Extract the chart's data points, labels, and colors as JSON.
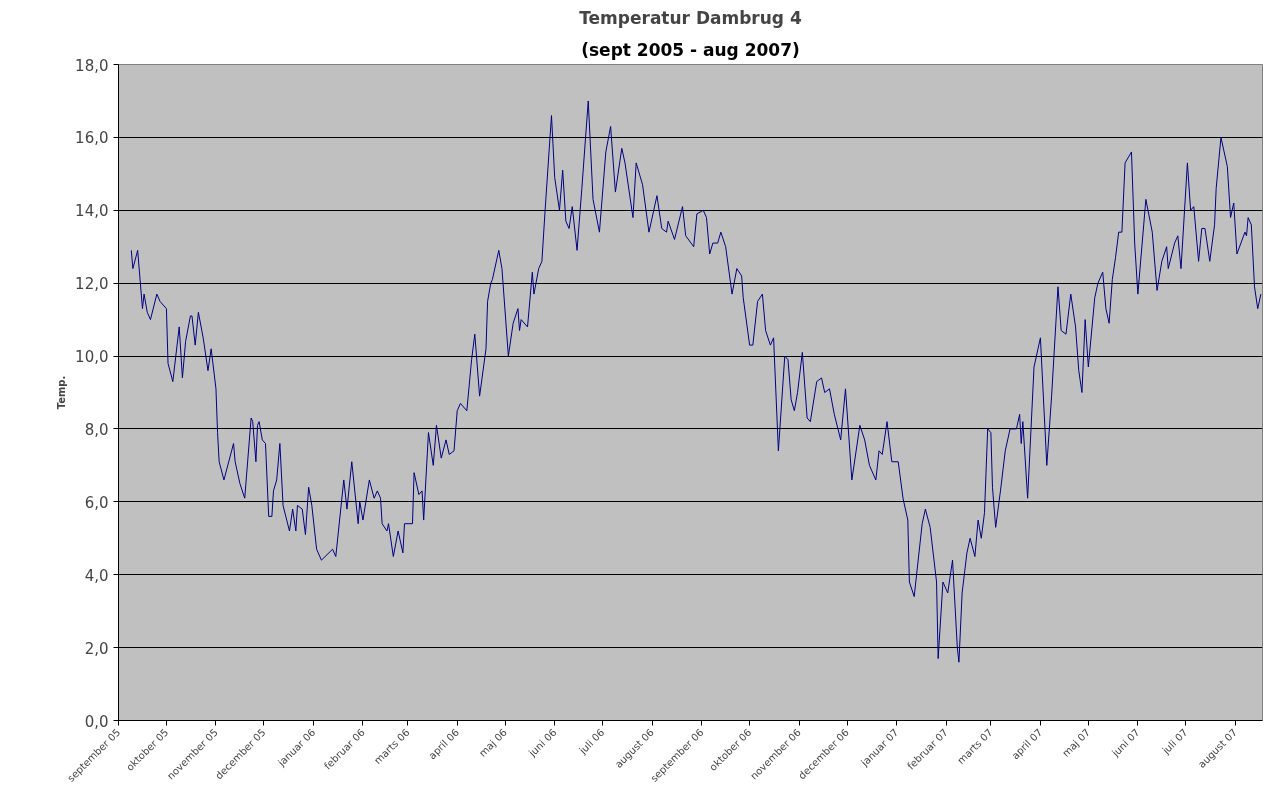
{
  "chart_data": {
    "type": "line",
    "title": "Temperatur Dambrug 4",
    "subtitle": "(sept 2005 - aug 2007)",
    "ylabel": "Temp.",
    "xlim": [
      "2005-09-01",
      "2007-08-18"
    ],
    "xticks": [
      {
        "value": "2005-09-01",
        "label": "september 05"
      },
      {
        "value": "2005-10-01",
        "label": "oktober 05"
      },
      {
        "value": "2005-11-01",
        "label": "november 05"
      },
      {
        "value": "2005-12-01",
        "label": "december 05"
      },
      {
        "value": "2006-01-01",
        "label": "januar 06"
      },
      {
        "value": "2006-02-01",
        "label": "februar 06"
      },
      {
        "value": "2006-03-01",
        "label": "marts 06"
      },
      {
        "value": "2006-04-01",
        "label": "april 06"
      },
      {
        "value": "2006-05-01",
        "label": "maj 06"
      },
      {
        "value": "2006-06-01",
        "label": "juni 06"
      },
      {
        "value": "2006-07-01",
        "label": "juli 06"
      },
      {
        "value": "2006-08-01",
        "label": "august 06"
      },
      {
        "value": "2006-09-01",
        "label": "september 06"
      },
      {
        "value": "2006-10-01",
        "label": "oktober 06"
      },
      {
        "value": "2006-11-01",
        "label": "november 06"
      },
      {
        "value": "2006-12-01",
        "label": "december 06"
      },
      {
        "value": "2007-01-01",
        "label": "januar 07"
      },
      {
        "value": "2007-02-01",
        "label": "februar 07"
      },
      {
        "value": "2007-03-01",
        "label": "marts 07"
      },
      {
        "value": "2007-04-01",
        "label": "april 07"
      },
      {
        "value": "2007-05-01",
        "label": "maj 07"
      },
      {
        "value": "2007-06-01",
        "label": "juni 07"
      },
      {
        "value": "2007-07-01",
        "label": "juli 07"
      },
      {
        "value": "2007-08-01",
        "label": "august 07"
      }
    ],
    "ylim": [
      0,
      18
    ],
    "yticks": [
      {
        "value": 0,
        "label": "0,0"
      },
      {
        "value": 2,
        "label": "2,0"
      },
      {
        "value": 4,
        "label": "4,0"
      },
      {
        "value": 6,
        "label": "6,0"
      },
      {
        "value": 8,
        "label": "8,0"
      },
      {
        "value": 10,
        "label": "10,0"
      },
      {
        "value": 12,
        "label": "12,0"
      },
      {
        "value": 14,
        "label": "14,0"
      },
      {
        "value": 16,
        "label": "16,0"
      },
      {
        "value": 18,
        "label": "18,0"
      }
    ],
    "grid": "y",
    "marker": "none",
    "line_style": "solid",
    "x": [
      "2005-09-09",
      "2005-09-10",
      "2005-09-13",
      "2005-09-16",
      "2005-09-17",
      "2005-09-19",
      "2005-09-21",
      "2005-09-25",
      "2005-09-27",
      "2005-10-01",
      "2005-10-02",
      "2005-10-05",
      "2005-10-09",
      "2005-10-11",
      "2005-10-13",
      "2005-10-16",
      "2005-10-17",
      "2005-10-19",
      "2005-10-21",
      "2005-10-24",
      "2005-10-27",
      "2005-10-29",
      "2005-11-01",
      "2005-11-02",
      "2005-11-03",
      "2005-11-06",
      "2005-11-12",
      "2005-11-13",
      "2005-11-16",
      "2005-11-19",
      "2005-11-23",
      "2005-11-24",
      "2005-11-26",
      "2005-11-27",
      "2005-11-28",
      "2005-11-30",
      "2005-12-02",
      "2005-12-04",
      "2005-12-06",
      "2005-12-07",
      "2005-12-09",
      "2005-12-11",
      "2005-12-13",
      "2005-12-17",
      "2005-12-19",
      "2005-12-21",
      "2005-12-22",
      "2005-12-25",
      "2005-12-27",
      "2005-12-29",
      "2005-12-31",
      "2006-01-03",
      "2006-01-06",
      "2006-01-13",
      "2006-01-15",
      "2006-01-20",
      "2006-01-22",
      "2006-01-25",
      "2006-01-29",
      "2006-01-30",
      "2006-02-01",
      "2006-02-05",
      "2006-02-08",
      "2006-02-10",
      "2006-02-12",
      "2006-02-13",
      "2006-02-16",
      "2006-02-17",
      "2006-02-20",
      "2006-02-23",
      "2006-02-26",
      "2006-02-27",
      "2006-03-04",
      "2006-03-05",
      "2006-03-08",
      "2006-03-10",
      "2006-03-11",
      "2006-03-14",
      "2006-03-17",
      "2006-03-19",
      "2006-03-22",
      "2006-03-25",
      "2006-03-27",
      "2006-03-30",
      "2006-04-01",
      "2006-04-03",
      "2006-04-07",
      "2006-04-10",
      "2006-04-12",
      "2006-04-15",
      "2006-04-19",
      "2006-04-20",
      "2006-04-22",
      "2006-04-23",
      "2006-04-27",
      "2006-04-29",
      "2006-05-03",
      "2006-05-06",
      "2006-05-09",
      "2006-05-10",
      "2006-05-11",
      "2006-05-15",
      "2006-05-18",
      "2006-05-19",
      "2006-05-22",
      "2006-05-24",
      "2006-05-26",
      "2006-05-30",
      "2006-06-01",
      "2006-06-04",
      "2006-06-06",
      "2006-06-08",
      "2006-06-10",
      "2006-06-12",
      "2006-06-15",
      "2006-06-18",
      "2006-06-22",
      "2006-06-25",
      "2006-06-29",
      "2006-07-03",
      "2006-07-06",
      "2006-07-09",
      "2006-07-13",
      "2006-07-15",
      "2006-07-20",
      "2006-07-22",
      "2006-07-26",
      "2006-07-30",
      "2006-08-04",
      "2006-08-07",
      "2006-08-10",
      "2006-08-11",
      "2006-08-15",
      "2006-08-20",
      "2006-08-22",
      "2006-08-27",
      "2006-08-29",
      "2006-09-02",
      "2006-09-04",
      "2006-09-06",
      "2006-09-08",
      "2006-09-11",
      "2006-09-13",
      "2006-09-16",
      "2006-09-20",
      "2006-09-23",
      "2006-09-26",
      "2006-09-27",
      "2006-10-01",
      "2006-10-03",
      "2006-10-06",
      "2006-10-09",
      "2006-10-11",
      "2006-10-14",
      "2006-10-16",
      "2006-10-19",
      "2006-10-23",
      "2006-10-25",
      "2006-10-27",
      "2006-10-29",
      "2006-10-31",
      "2006-11-03",
      "2006-11-06",
      "2006-11-08",
      "2006-11-12",
      "2006-11-15",
      "2006-11-17",
      "2006-11-20",
      "2006-11-23",
      "2006-11-27",
      "2006-11-30",
      "2006-12-04",
      "2006-12-09",
      "2006-12-12",
      "2006-12-15",
      "2006-12-19",
      "2006-12-21",
      "2006-12-23",
      "2006-12-26",
      "2006-12-29",
      "2007-01-02",
      "2007-01-05",
      "2007-01-08",
      "2007-01-09",
      "2007-01-12",
      "2007-01-17",
      "2007-01-19",
      "2007-01-22",
      "2007-01-26",
      "2007-01-27",
      "2007-01-30",
      "2007-02-02",
      "2007-02-05",
      "2007-02-08",
      "2007-02-09",
      "2007-02-11",
      "2007-02-14",
      "2007-02-16",
      "2007-02-19",
      "2007-02-21",
      "2007-02-23",
      "2007-02-25",
      "2007-02-27",
      "2007-03-01",
      "2007-03-02",
      "2007-03-04",
      "2007-03-07",
      "2007-03-10",
      "2007-03-13",
      "2007-03-17",
      "2007-03-19",
      "2007-03-20",
      "2007-03-21",
      "2007-03-24",
      "2007-03-28",
      "2007-04-01",
      "2007-04-05",
      "2007-04-08",
      "2007-04-12",
      "2007-04-14",
      "2007-04-17",
      "2007-04-20",
      "2007-04-23",
      "2007-04-25",
      "2007-04-27",
      "2007-04-29",
      "2007-05-01",
      "2007-05-05",
      "2007-05-07",
      "2007-05-10",
      "2007-05-12",
      "2007-05-14",
      "2007-05-16",
      "2007-05-18",
      "2007-05-20",
      "2007-05-22",
      "2007-05-24",
      "2007-05-28",
      "2007-05-30",
      "2007-06-01",
      "2007-06-06",
      "2007-06-10",
      "2007-06-13",
      "2007-06-16",
      "2007-06-19",
      "2007-06-20",
      "2007-06-24",
      "2007-06-26",
      "2007-06-28",
      "2007-07-02",
      "2007-07-04",
      "2007-07-06",
      "2007-07-09",
      "2007-07-11",
      "2007-07-13",
      "2007-07-16",
      "2007-07-19",
      "2007-07-20",
      "2007-07-23",
      "2007-07-25",
      "2007-07-27",
      "2007-07-29",
      "2007-07-31",
      "2007-08-02",
      "2007-08-07",
      "2007-08-08",
      "2007-08-09",
      "2007-08-11",
      "2007-08-13",
      "2007-08-15",
      "2007-08-17"
    ],
    "series": [
      {
        "color": "#000080",
        "values": [
          12.9,
          12.4,
          12.9,
          11.3,
          11.7,
          11.2,
          11.0,
          11.7,
          11.5,
          11.3,
          9.8,
          9.3,
          10.8,
          9.4,
          10.4,
          11.1,
          11.1,
          10.3,
          11.2,
          10.5,
          9.6,
          10.2,
          9.1,
          7.9,
          7.1,
          6.6,
          7.6,
          7.1,
          6.5,
          6.1,
          8.3,
          8.2,
          7.1,
          8.1,
          8.2,
          7.7,
          7.6,
          5.6,
          5.6,
          6.3,
          6.6,
          7.6,
          5.9,
          5.2,
          5.8,
          5.2,
          5.9,
          5.8,
          5.1,
          6.4,
          5.9,
          4.7,
          4.4,
          4.7,
          4.5,
          6.6,
          5.8,
          7.1,
          5.4,
          6.0,
          5.5,
          6.6,
          6.1,
          6.3,
          6.1,
          5.4,
          5.2,
          5.4,
          4.5,
          5.2,
          4.6,
          5.4,
          5.4,
          6.8,
          6.2,
          6.3,
          5.5,
          7.9,
          7.0,
          8.1,
          7.2,
          7.7,
          7.3,
          7.4,
          8.5,
          8.7,
          8.5,
          9.9,
          10.6,
          8.9,
          10.2,
          11.5,
          12.0,
          12.1,
          12.9,
          12.4,
          10.0,
          10.9,
          11.3,
          10.7,
          11.0,
          10.8,
          12.3,
          11.7,
          12.4,
          12.6,
          14.0,
          16.6,
          14.9,
          14.0,
          15.1,
          13.7,
          13.5,
          14.1,
          12.9,
          14.6,
          17.0,
          14.3,
          13.4,
          15.6,
          16.3,
          14.5,
          15.7,
          15.3,
          13.8,
          15.3,
          14.7,
          13.4,
          14.4,
          13.5,
          13.4,
          13.7,
          13.2,
          14.1,
          13.3,
          13.0,
          13.9,
          14.0,
          13.8,
          12.8,
          13.1,
          13.1,
          13.4,
          13.0,
          11.7,
          12.4,
          12.2,
          11.6,
          10.3,
          10.3,
          11.5,
          11.7,
          10.7,
          10.3,
          10.5,
          7.4,
          10.0,
          9.9,
          8.8,
          8.5,
          9.0,
          10.1,
          8.3,
          8.2,
          9.3,
          9.4,
          9.0,
          9.1,
          8.4,
          7.7,
          9.1,
          6.6,
          8.1,
          7.7,
          7.0,
          6.6,
          7.4,
          7.3,
          8.2,
          7.1,
          7.1,
          6.1,
          5.5,
          3.8,
          3.4,
          5.4,
          5.8,
          5.3,
          3.8,
          1.7,
          3.8,
          3.5,
          4.4,
          2.0,
          1.6,
          3.5,
          4.6,
          5.0,
          4.5,
          5.5,
          5.0,
          5.7,
          8.0,
          7.9,
          6.4,
          5.3,
          6.3,
          7.4,
          8.0,
          8.0,
          8.4,
          7.6,
          8.2,
          6.1,
          9.7,
          10.5,
          7.0,
          8.9,
          11.9,
          10.7,
          10.6,
          11.7,
          10.8,
          9.6,
          9.0,
          11.0,
          9.7,
          11.6,
          12.0,
          12.3,
          11.3,
          10.9,
          12.1,
          12.7,
          13.4,
          13.4,
          15.3,
          15.6,
          13.1,
          11.7,
          14.3,
          13.4,
          11.8,
          12.6,
          13.0,
          12.4,
          13.1,
          13.3,
          12.4,
          15.3,
          14.0,
          14.1,
          12.6,
          13.5,
          13.5,
          12.6,
          13.6,
          14.6,
          16.0,
          15.6,
          15.2,
          13.8,
          14.2,
          12.8,
          13.4,
          13.3,
          13.8,
          13.6,
          11.9,
          11.3,
          11.7
        ]
      }
    ]
  }
}
